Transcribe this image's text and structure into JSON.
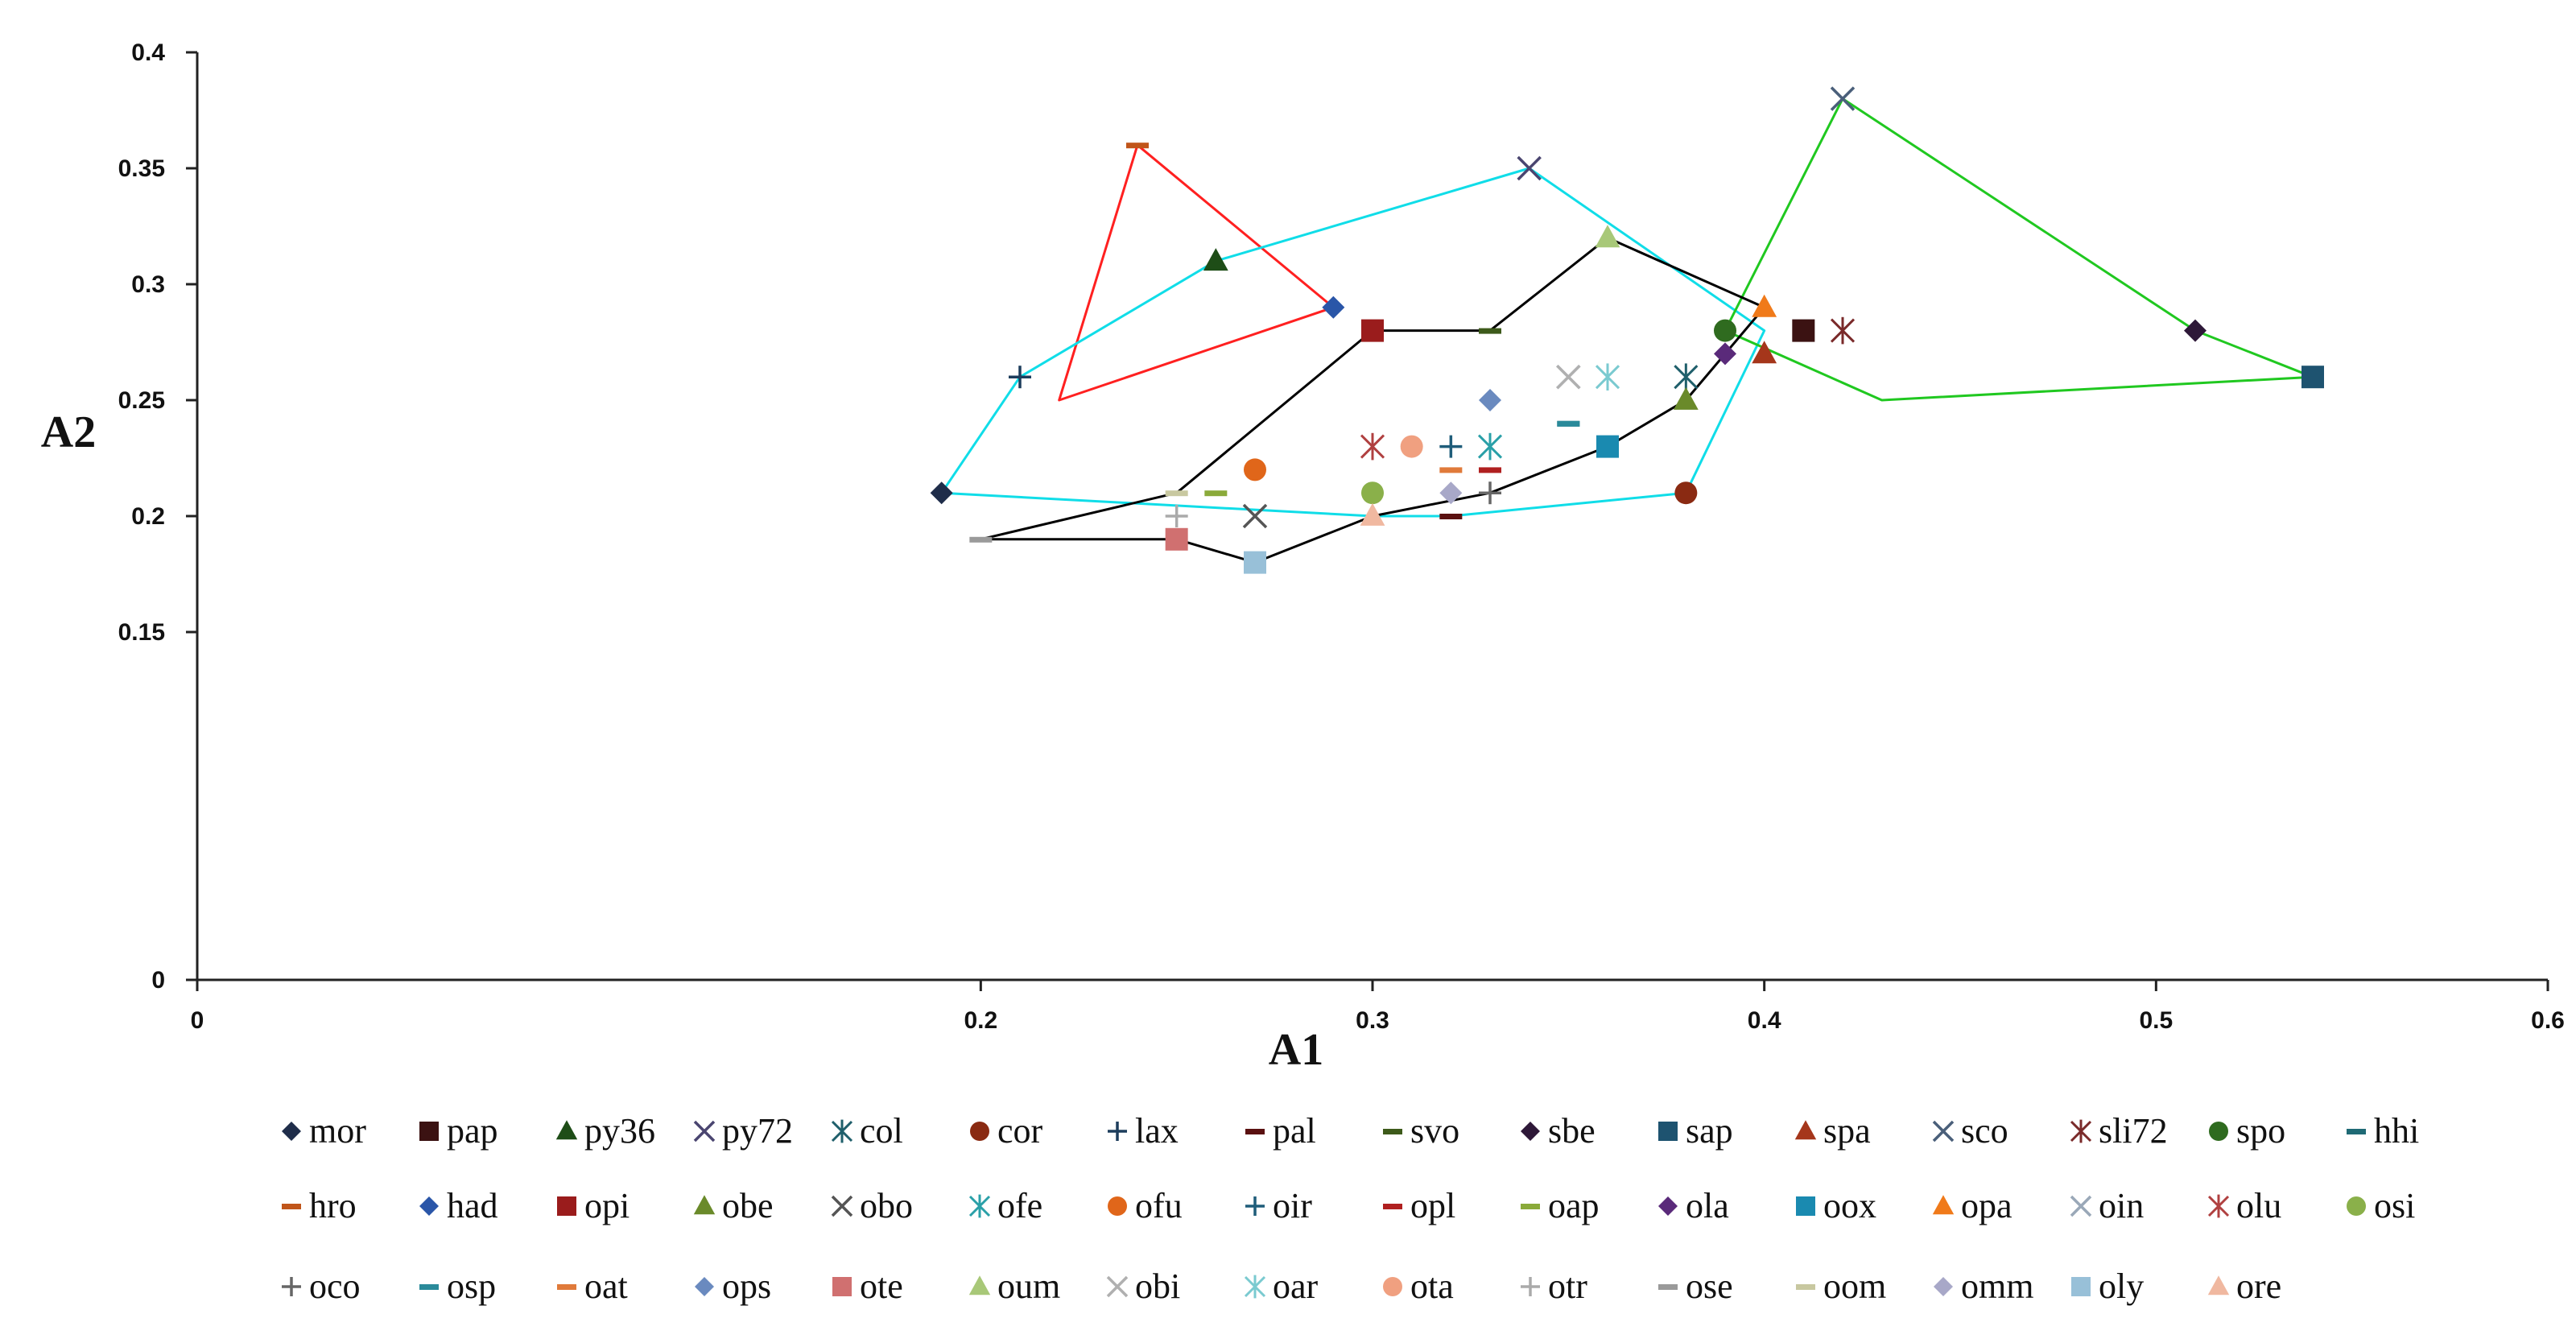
{
  "chart_data": {
    "type": "scatter",
    "title": "",
    "xlabel": "A1",
    "ylabel": "A2",
    "xlim": [
      0,
      0.6
    ],
    "ylim": [
      0,
      0.4
    ],
    "x_ticks": [
      0,
      0.2,
      0.3,
      0.4,
      0.5,
      0.6
    ],
    "x_tick_labels": [
      "0",
      "0.2",
      "0.3",
      "0.4",
      "0.5",
      "0.6"
    ],
    "y_ticks": [
      0,
      0.15,
      0.2,
      0.25,
      0.3,
      0.35,
      0.4
    ],
    "y_tick_labels": [
      "0",
      "0.15",
      "0.2",
      "0.25",
      "0.3",
      "0.35",
      "0.4"
    ],
    "grid": false,
    "legend_position": "bottom",
    "series": [
      {
        "name": "mor",
        "marker": "diamond",
        "color": "#1f2d4a",
        "x": 0.19,
        "y": 0.21
      },
      {
        "name": "pap",
        "marker": "square",
        "color": "#3b1212",
        "x": 0.41,
        "y": 0.28
      },
      {
        "name": "py36",
        "marker": "triangle",
        "color": "#1e4d17",
        "x": 0.26,
        "y": 0.31
      },
      {
        "name": "py72",
        "marker": "x",
        "color": "#4a4570",
        "x": 0.34,
        "y": 0.35
      },
      {
        "name": "col",
        "marker": "asterisk",
        "color": "#1f5f6b",
        "x": 0.38,
        "y": 0.26
      },
      {
        "name": "cor",
        "marker": "circle",
        "color": "#8a2a12",
        "x": 0.38,
        "y": 0.21
      },
      {
        "name": "lax",
        "marker": "plus",
        "color": "#1d3d5c",
        "x": 0.21,
        "y": 0.26
      },
      {
        "name": "pal",
        "marker": "dash",
        "color": "#5a1010",
        "x": 0.32,
        "y": 0.2
      },
      {
        "name": "svo",
        "marker": "dash",
        "color": "#3d5a1a",
        "x": 0.33,
        "y": 0.28
      },
      {
        "name": "sbe",
        "marker": "diamond",
        "color": "#2e1838",
        "x": 0.51,
        "y": 0.28
      },
      {
        "name": "sap",
        "marker": "square",
        "color": "#1e5370",
        "x": 0.54,
        "y": 0.26
      },
      {
        "name": "spa",
        "marker": "triangle",
        "color": "#a5361b",
        "x": 0.4,
        "y": 0.27
      },
      {
        "name": "sco",
        "marker": "x",
        "color": "#4a5f7a",
        "x": 0.42,
        "y": 0.38
      },
      {
        "name": "sli72",
        "marker": "asterisk",
        "color": "#7a2a2a",
        "x": 0.42,
        "y": 0.28
      },
      {
        "name": "spo",
        "marker": "circle",
        "color": "#2f6b1f",
        "x": 0.39,
        "y": 0.28
      },
      {
        "name": "hhi",
        "marker": "dash",
        "color": "#1f6a75",
        "x": 0.35,
        "y": 0.24
      },
      {
        "name": "hro",
        "marker": "dash",
        "color": "#c0551a",
        "x": 0.24,
        "y": 0.36
      },
      {
        "name": "had",
        "marker": "diamond",
        "color": "#2a56a8",
        "x": 0.29,
        "y": 0.29
      },
      {
        "name": "opi",
        "marker": "square",
        "color": "#9a1c1c",
        "x": 0.3,
        "y": 0.28
      },
      {
        "name": "obe",
        "marker": "triangle",
        "color": "#6a8a2a",
        "x": 0.38,
        "y": 0.25
      },
      {
        "name": "obo",
        "marker": "x",
        "color": "#555555",
        "x": 0.27,
        "y": 0.2
      },
      {
        "name": "ofe",
        "marker": "asterisk",
        "color": "#2aa0a8",
        "x": 0.33,
        "y": 0.23
      },
      {
        "name": "ofu",
        "marker": "circle",
        "color": "#e0661a",
        "x": 0.27,
        "y": 0.22
      },
      {
        "name": "oir",
        "marker": "plus",
        "color": "#1f5d7a",
        "x": 0.32,
        "y": 0.23
      },
      {
        "name": "opl",
        "marker": "dash",
        "color": "#b02020",
        "x": 0.33,
        "y": 0.22
      },
      {
        "name": "oap",
        "marker": "dash",
        "color": "#8aaa3a",
        "x": 0.26,
        "y": 0.21
      },
      {
        "name": "ola",
        "marker": "diamond",
        "color": "#5a2a7a",
        "x": 0.39,
        "y": 0.27
      },
      {
        "name": "oox",
        "marker": "square",
        "color": "#1a8ab0",
        "x": 0.36,
        "y": 0.23
      },
      {
        "name": "opa",
        "marker": "triangle",
        "color": "#f07a1a",
        "x": 0.4,
        "y": 0.29
      },
      {
        "name": "oin",
        "marker": "x",
        "color": "#9aa8b8",
        "x": 0.35,
        "y": 0.26
      },
      {
        "name": "olu",
        "marker": "asterisk",
        "color": "#b04040",
        "x": 0.3,
        "y": 0.23
      },
      {
        "name": "osi",
        "marker": "circle",
        "color": "#8ab04a",
        "x": 0.3,
        "y": 0.21
      },
      {
        "name": "oco",
        "marker": "plus",
        "color": "#666666",
        "x": 0.33,
        "y": 0.21
      },
      {
        "name": "osp",
        "marker": "dash",
        "color": "#2a8a9a",
        "x": 0.35,
        "y": 0.24
      },
      {
        "name": "oat",
        "marker": "dash",
        "color": "#e07a3a",
        "x": 0.32,
        "y": 0.22
      },
      {
        "name": "ops",
        "marker": "diamond",
        "color": "#6a8abf",
        "x": 0.33,
        "y": 0.25
      },
      {
        "name": "ote",
        "marker": "square",
        "color": "#d07070",
        "x": 0.25,
        "y": 0.19
      },
      {
        "name": "oum",
        "marker": "triangle",
        "color": "#a8c878",
        "x": 0.36,
        "y": 0.32
      },
      {
        "name": "obi",
        "marker": "x",
        "color": "#b0b0b0",
        "x": 0.35,
        "y": 0.26
      },
      {
        "name": "oar",
        "marker": "asterisk",
        "color": "#7acad0",
        "x": 0.36,
        "y": 0.26
      },
      {
        "name": "ota",
        "marker": "circle",
        "color": "#f0a080",
        "x": 0.31,
        "y": 0.23
      },
      {
        "name": "otr",
        "marker": "plus",
        "color": "#aaaaaa",
        "x": 0.25,
        "y": 0.2
      },
      {
        "name": "ose",
        "marker": "dash",
        "color": "#9a9a9a",
        "x": 0.2,
        "y": 0.19
      },
      {
        "name": "oom",
        "marker": "dash",
        "color": "#c8c8a0",
        "x": 0.25,
        "y": 0.21
      },
      {
        "name": "omm",
        "marker": "diamond",
        "color": "#a8a8c8",
        "x": 0.32,
        "y": 0.21
      },
      {
        "name": "oly",
        "marker": "square",
        "color": "#98c0d8",
        "x": 0.27,
        "y": 0.18
      },
      {
        "name": "ore",
        "marker": "triangle",
        "color": "#f0b8a0",
        "x": 0.3,
        "y": 0.2
      }
    ],
    "outlines": [
      {
        "name": "red-group",
        "color": "#ff2020",
        "points": [
          [
            0.24,
            0.36
          ],
          [
            0.29,
            0.29
          ],
          [
            0.22,
            0.25
          ],
          [
            0.24,
            0.36
          ]
        ]
      },
      {
        "name": "cyan-group",
        "color": "#10dde8",
        "points": [
          [
            0.21,
            0.26
          ],
          [
            0.26,
            0.31
          ],
          [
            0.34,
            0.35
          ],
          [
            0.4,
            0.28
          ],
          [
            0.38,
            0.21
          ],
          [
            0.32,
            0.2
          ],
          [
            0.3,
            0.2
          ],
          [
            0.19,
            0.21
          ],
          [
            0.21,
            0.26
          ]
        ]
      },
      {
        "name": "green-group",
        "color": "#20c820",
        "points": [
          [
            0.39,
            0.28
          ],
          [
            0.42,
            0.38
          ],
          [
            0.51,
            0.28
          ],
          [
            0.54,
            0.26
          ],
          [
            0.43,
            0.25
          ],
          [
            0.39,
            0.28
          ]
        ]
      },
      {
        "name": "black-group",
        "color": "#000000",
        "points": [
          [
            0.2,
            0.19
          ],
          [
            0.25,
            0.19
          ],
          [
            0.27,
            0.18
          ],
          [
            0.3,
            0.2
          ],
          [
            0.33,
            0.21
          ],
          [
            0.36,
            0.23
          ],
          [
            0.38,
            0.25
          ],
          [
            0.4,
            0.29
          ],
          [
            0.36,
            0.32
          ],
          [
            0.33,
            0.28
          ],
          [
            0.3,
            0.28
          ],
          [
            0.25,
            0.21
          ],
          [
            0.2,
            0.19
          ]
        ]
      }
    ]
  }
}
